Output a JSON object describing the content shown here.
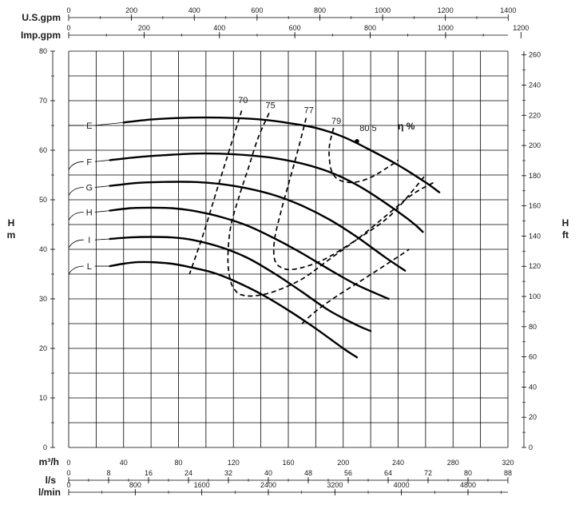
{
  "chart_data": {
    "type": "line",
    "title": "",
    "xlabel": "m³/h",
    "ylabel": "H m",
    "y2label": "H ft",
    "xlim": [
      0,
      320
    ],
    "ylim": [
      0,
      80
    ],
    "y2lim": [
      0,
      262.47
    ],
    "grid": true,
    "x_ticks": [
      "0",
      "40",
      "80",
      "120",
      "160",
      "200",
      "240",
      "280",
      "320"
    ],
    "y_ticks": [
      "0",
      "10",
      "20",
      "30",
      "40",
      "50",
      "60",
      "70",
      "80"
    ],
    "y2_ticks": [
      "0",
      "20",
      "40",
      "60",
      "80",
      "100",
      "120",
      "140",
      "160",
      "180",
      "200",
      "220",
      "240",
      "260"
    ],
    "secondary_x_axes": [
      {
        "unit": "U.S.gpm",
        "ticks": [
          "0",
          "200",
          "400",
          "600",
          "800",
          "1000",
          "1200",
          "1400"
        ]
      },
      {
        "unit": "Imp.gpm",
        "ticks": [
          "0",
          "200",
          "400",
          "600",
          "800",
          "1000",
          "1200"
        ]
      },
      {
        "unit": "l/s",
        "ticks": [
          "0",
          "8",
          "16",
          "24",
          "32",
          "40",
          "48",
          "56",
          "64",
          "72",
          "80",
          "88"
        ]
      },
      {
        "unit": "l/min",
        "ticks": [
          "0",
          "800",
          "1600",
          "2400",
          "3200",
          "4000",
          "4800"
        ]
      }
    ],
    "series": [
      {
        "name": "E",
        "label_at": [
          15,
          65
        ],
        "x": [
          40,
          60,
          80,
          100,
          120,
          140,
          160,
          180,
          200,
          220,
          240,
          260,
          270
        ],
        "y": [
          65.6,
          66.2,
          66.5,
          66.6,
          66.5,
          66.2,
          65.5,
          64.5,
          62.7,
          60.0,
          57.0,
          53.5,
          51.5
        ]
      },
      {
        "name": "F",
        "label_at": [
          15,
          57.7
        ],
        "x": [
          30,
          50,
          70,
          90,
          110,
          130,
          150,
          170,
          190,
          210,
          230,
          250,
          258
        ],
        "y": [
          58.0,
          58.6,
          59.0,
          59.3,
          59.3,
          59.0,
          58.4,
          57.3,
          55.6,
          53.0,
          49.5,
          45.5,
          43.5
        ]
      },
      {
        "name": "G",
        "label_at": [
          15,
          52.5
        ],
        "x": [
          30,
          50,
          70,
          90,
          110,
          130,
          150,
          170,
          190,
          210,
          230,
          245
        ],
        "y": [
          52.8,
          53.4,
          53.6,
          53.6,
          53.2,
          52.3,
          50.9,
          48.8,
          46.0,
          42.5,
          38.5,
          35.7
        ]
      },
      {
        "name": "H",
        "label_at": [
          15,
          47.5
        ],
        "x": [
          30,
          45,
          60,
          75,
          90,
          110,
          130,
          150,
          170,
          190,
          210,
          233
        ],
        "y": [
          47.8,
          48.3,
          48.4,
          48.3,
          47.8,
          46.6,
          44.8,
          42.2,
          39.2,
          35.9,
          32.8,
          30.0
        ]
      },
      {
        "name": "I",
        "label_at": [
          15,
          41.9
        ],
        "x": [
          30,
          45,
          60,
          75,
          90,
          110,
          130,
          150,
          170,
          190,
          210,
          220
        ],
        "y": [
          42.1,
          42.4,
          42.5,
          42.4,
          41.9,
          40.5,
          38.3,
          35.1,
          31.4,
          27.6,
          24.7,
          23.5
        ]
      },
      {
        "name": "L",
        "label_at": [
          15,
          36.6
        ],
        "x": [
          30,
          40,
          50,
          60,
          75,
          90,
          105,
          120,
          140,
          160,
          180,
          200,
          210
        ],
        "y": [
          36.6,
          37.1,
          37.4,
          37.4,
          37.1,
          36.3,
          35.3,
          33.7,
          31.0,
          27.7,
          24.0,
          20.0,
          18.2
        ]
      }
    ],
    "efficiency_curves": [
      {
        "label": "70",
        "label_at": [
          127,
          69.5
        ],
        "x": [
          126,
          117,
          108,
          98,
          88
        ],
        "y": [
          68.0,
          60.0,
          52.0,
          43.0,
          35.0
        ]
      },
      {
        "label": "75",
        "label_at": [
          147,
          68.5
        ],
        "x": [
          146,
          138,
          131,
          124,
          118,
          116,
          118,
          122,
          126,
          135,
          150,
          170,
          190,
          210,
          230,
          250,
          266
        ],
        "y": [
          67.5,
          62.5,
          56.5,
          50.5,
          44.5,
          38.0,
          33.5,
          31.5,
          30.8,
          30.6,
          31.5,
          34.0,
          38.0,
          42.0,
          46.5,
          51.0,
          53.5
        ]
      },
      {
        "label": "77",
        "label_at": [
          175,
          67.5
        ],
        "x": [
          173,
          167,
          161,
          155,
          150,
          150,
          155,
          165,
          185,
          210,
          235,
          260
        ],
        "y": [
          66.5,
          60.0,
          54.0,
          48.0,
          42.0,
          38.0,
          36.3,
          36.0,
          37.8,
          42.0,
          47.0,
          55.0
        ]
      },
      {
        "label": "79",
        "label_at": [
          195,
          65.3
        ],
        "x": [
          193,
          190,
          190,
          192,
          197,
          207,
          220,
          235,
          240
        ],
        "y": [
          64.5,
          61.0,
          58.0,
          55.5,
          54.0,
          53.5,
          54.5,
          57.0,
          58.0
        ]
      },
      {
        "label": "",
        "label_at": [
          0,
          0
        ],
        "x": [
          170,
          180,
          195,
          215,
          240,
          248
        ],
        "y": [
          25.0,
          27.5,
          30.5,
          34.0,
          38.5,
          40.0
        ]
      }
    ],
    "bep": {
      "label": "80,5",
      "x": 210,
      "y": 61.8
    },
    "eta_label": "η %"
  }
}
